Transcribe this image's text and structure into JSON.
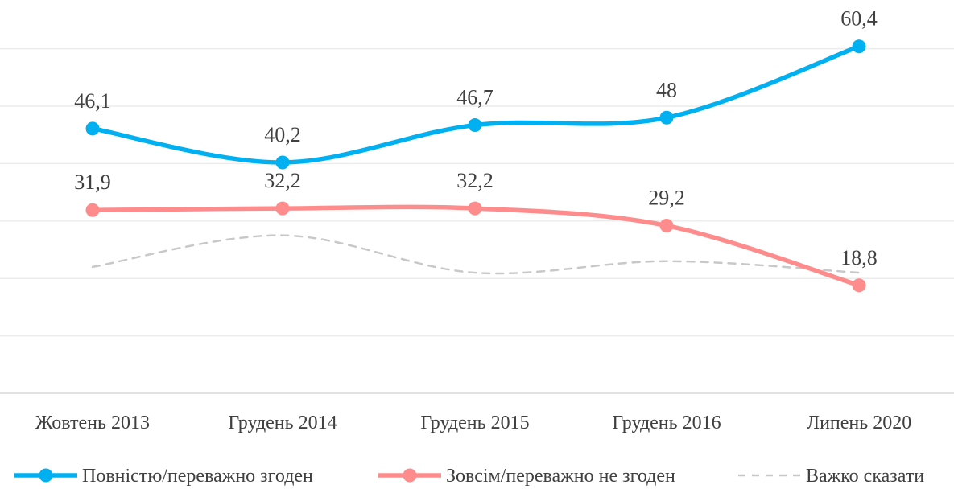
{
  "chart_data": {
    "type": "line",
    "categories": [
      "Жовтень 2013",
      "Грудень 2014",
      "Грудень 2015",
      "Грудень 2016",
      "Липень 2020"
    ],
    "ylim": [
      0,
      70
    ],
    "grid": true,
    "legend": "bottom",
    "series": [
      {
        "name": "Повністю/переважно згоден",
        "values": [
          46.1,
          40.2,
          46.7,
          48,
          60.4
        ],
        "labels": [
          "46,1",
          "40,2",
          "46,7",
          "48",
          "60,4"
        ],
        "color": "#00b0f0",
        "style": "solid-markers"
      },
      {
        "name": "Зовсім/переважно не згоден",
        "values": [
          31.9,
          32.2,
          32.2,
          29.2,
          18.8
        ],
        "labels": [
          "31,9",
          "32,2",
          "32,2",
          "29,2",
          "18,8"
        ],
        "color": "#ff8c8c",
        "style": "solid-markers"
      },
      {
        "name": "Важко сказати",
        "values": [
          22,
          27.5,
          21,
          23,
          21
        ],
        "labels": [],
        "color": "#c8c8c8",
        "style": "dashed"
      }
    ]
  }
}
